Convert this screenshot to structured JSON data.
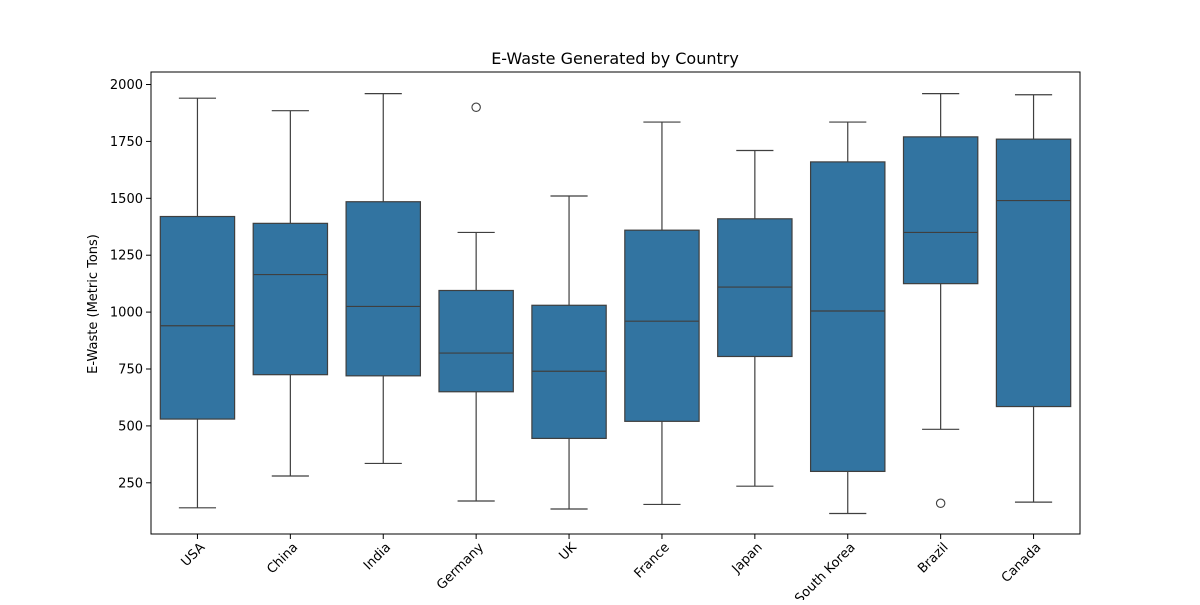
{
  "chart_data": {
    "type": "box",
    "title": "E-Waste Generated by Country",
    "xlabel": "",
    "ylabel": "E-Waste (Metric Tons)",
    "ylim": [
      25,
      2055
    ],
    "yticks": [
      250,
      500,
      750,
      1000,
      1250,
      1500,
      1750,
      2000
    ],
    "grid": false,
    "box_color": "#3274a1",
    "line_color": "#3f3f3f",
    "categories": [
      "USA",
      "China",
      "India",
      "Germany",
      "UK",
      "France",
      "Japan",
      "South Korea",
      "Brazil",
      "Canada"
    ],
    "boxes": [
      {
        "category": "USA",
        "whisker_low": 140,
        "q1": 530,
        "median": 940,
        "q3": 1420,
        "whisker_high": 1940,
        "outliers": []
      },
      {
        "category": "China",
        "whisker_low": 280,
        "q1": 725,
        "median": 1165,
        "q3": 1390,
        "whisker_high": 1885,
        "outliers": []
      },
      {
        "category": "India",
        "whisker_low": 335,
        "q1": 720,
        "median": 1025,
        "q3": 1485,
        "whisker_high": 1960,
        "outliers": []
      },
      {
        "category": "Germany",
        "whisker_low": 170,
        "q1": 650,
        "median": 820,
        "q3": 1095,
        "whisker_high": 1350,
        "outliers": [
          1900
        ]
      },
      {
        "category": "UK",
        "whisker_low": 135,
        "q1": 445,
        "median": 740,
        "q3": 1030,
        "whisker_high": 1510,
        "outliers": []
      },
      {
        "category": "France",
        "whisker_low": 155,
        "q1": 520,
        "median": 960,
        "q3": 1360,
        "whisker_high": 1835,
        "outliers": []
      },
      {
        "category": "Japan",
        "whisker_low": 235,
        "q1": 805,
        "median": 1110,
        "q3": 1410,
        "whisker_high": 1710,
        "outliers": []
      },
      {
        "category": "South Korea",
        "whisker_low": 115,
        "q1": 300,
        "median": 1005,
        "q3": 1660,
        "whisker_high": 1835,
        "outliers": []
      },
      {
        "category": "Brazil",
        "whisker_low": 485,
        "q1": 1125,
        "median": 1350,
        "q3": 1770,
        "whisker_high": 1960,
        "outliers": [
          160
        ]
      },
      {
        "category": "Canada",
        "whisker_low": 165,
        "q1": 585,
        "median": 1490,
        "q3": 1760,
        "whisker_high": 1955,
        "outliers": []
      }
    ]
  }
}
